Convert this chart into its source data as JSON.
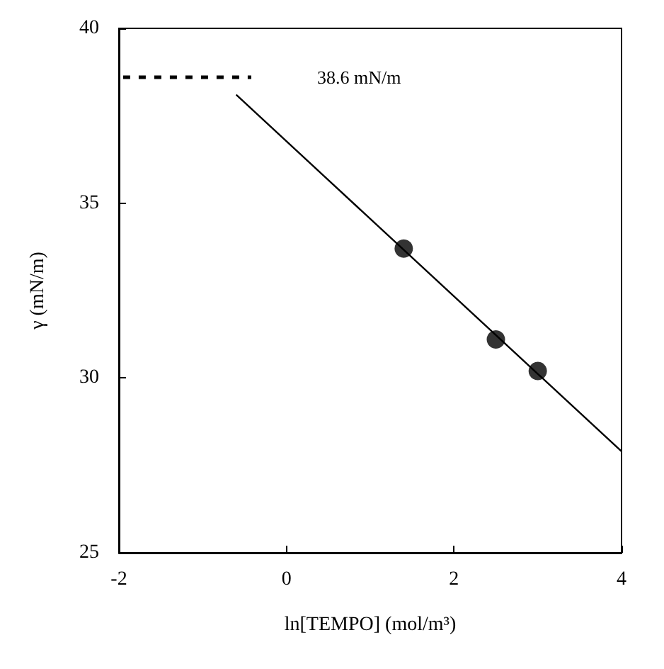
{
  "chart_data": {
    "type": "scatter",
    "xlabel": "ln[TEMPO] (mol/m³)",
    "ylabel": "γ (mN/m)",
    "xlim": [
      -2,
      4
    ],
    "xticks": [
      -2,
      0,
      2,
      4
    ],
    "ylim": [
      25,
      40
    ],
    "yticks": [
      25,
      30,
      35,
      40
    ],
    "grid": false,
    "marker": "circle",
    "series": [
      {
        "color": "#000000",
        "x": [
          1.4,
          2.5,
          3.0
        ],
        "values": [
          33.7,
          31.1,
          30.2
        ]
      },
      {
        "type": "line",
        "color": "#000000",
        "marker": "none",
        "line_style": "solid",
        "x": [
          -0.6,
          4
        ],
        "values": [
          38.1,
          27.9
        ]
      },
      {
        "type": "line",
        "color": "#000000",
        "marker": "none",
        "line_style": "dashed",
        "x": [
          -1.95,
          -0.42
        ],
        "values": [
          38.6,
          38.6
        ]
      }
    ],
    "annotations": [
      "38.6 mN/m"
    ]
  }
}
